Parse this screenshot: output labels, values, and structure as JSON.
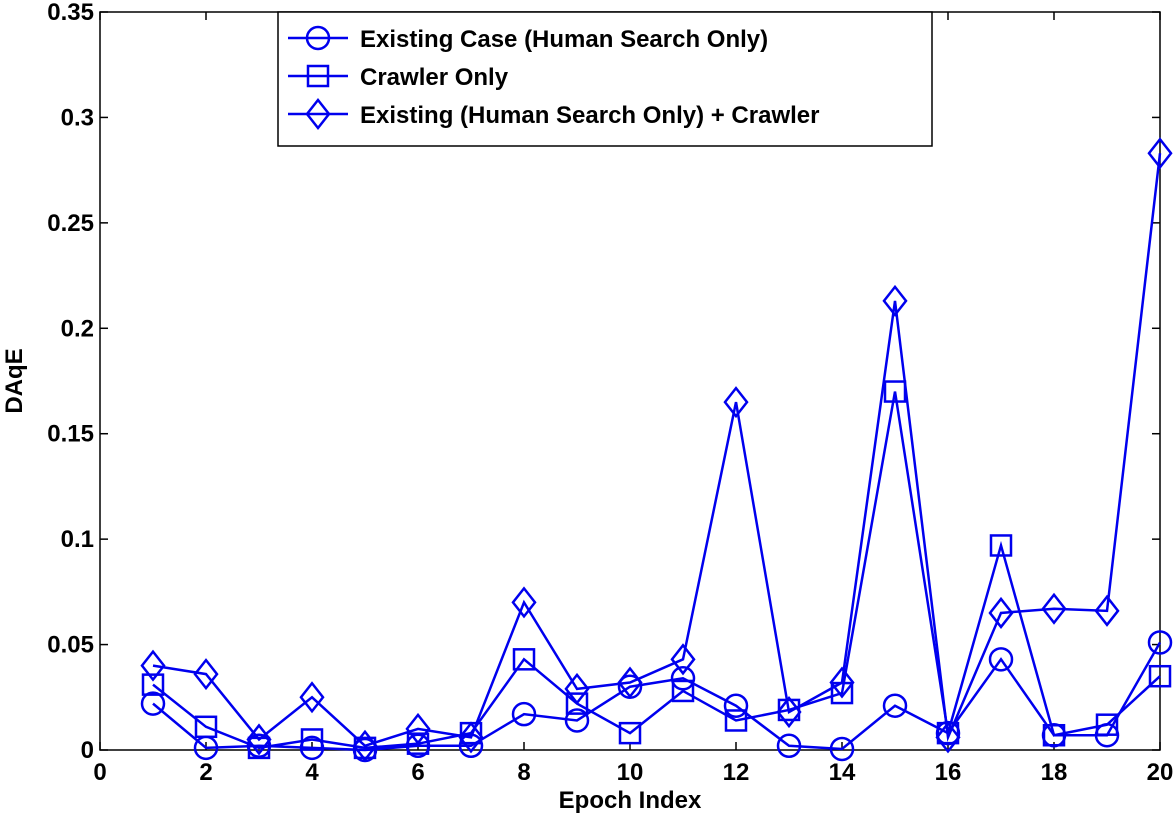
{
  "chart_data": {
    "type": "line",
    "x_label": "Epoch Index",
    "y_label": "DAqE",
    "x": [
      1,
      2,
      3,
      4,
      5,
      6,
      7,
      8,
      9,
      10,
      11,
      12,
      13,
      14,
      15,
      16,
      17,
      18,
      19,
      20
    ],
    "series": [
      {
        "name": "Existing Case (Human Search Only)",
        "color": "#0000ee",
        "marker": "circle",
        "values": [
          0.022,
          0.001,
          0.002,
          0.001,
          0.0,
          0.002,
          0.002,
          0.017,
          0.014,
          0.03,
          0.034,
          0.021,
          0.002,
          0.0005,
          0.021,
          0.008,
          0.043,
          0.007,
          0.007,
          0.051
        ]
      },
      {
        "name": "Crawler Only",
        "color": "#0000ee",
        "marker": "square",
        "values": [
          0.031,
          0.011,
          0.001,
          0.005,
          0.001,
          0.003,
          0.008,
          0.043,
          0.022,
          0.008,
          0.028,
          0.014,
          0.019,
          0.027,
          0.17,
          0.008,
          0.097,
          0.007,
          0.012,
          0.035
        ]
      },
      {
        "name": "Existing (Human Search Only) + Crawler",
        "color": "#0000ee",
        "marker": "diamond",
        "values": [
          0.04,
          0.036,
          0.005,
          0.025,
          0.002,
          0.01,
          0.006,
          0.07,
          0.029,
          0.032,
          0.043,
          0.165,
          0.018,
          0.032,
          0.213,
          0.006,
          0.065,
          0.067,
          0.066,
          0.283
        ]
      }
    ],
    "xlim": [
      0,
      20
    ],
    "xticks": [
      0,
      2,
      4,
      6,
      8,
      10,
      12,
      14,
      16,
      18,
      20
    ],
    "ylim": [
      0,
      0.35
    ],
    "yticks": [
      0,
      0.05,
      0.1,
      0.15,
      0.2,
      0.25,
      0.3,
      0.35
    ],
    "legend": "top"
  }
}
